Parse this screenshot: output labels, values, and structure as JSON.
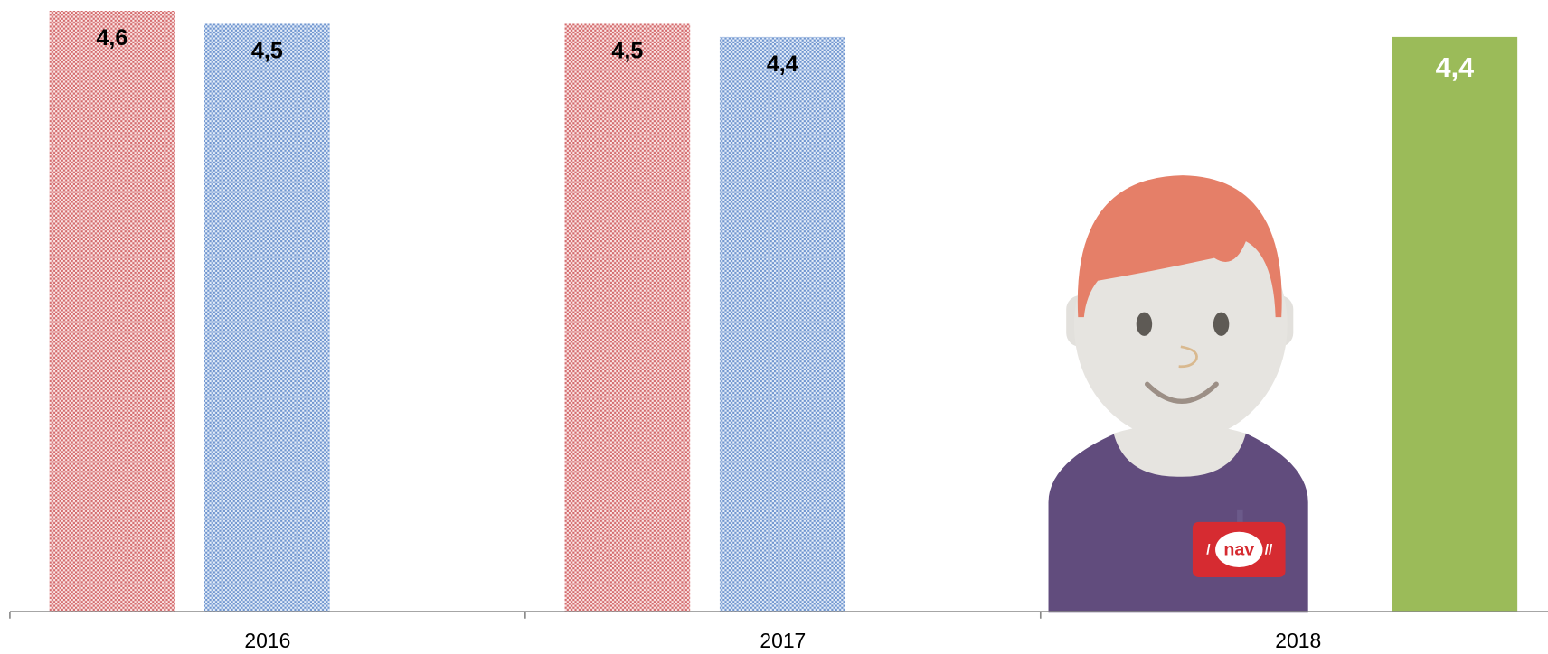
{
  "chart_data": {
    "type": "bar",
    "categories": [
      "2016",
      "2017",
      "2018"
    ],
    "series": [
      {
        "color": "#d9898a",
        "values": [
          4.6,
          4.5,
          null
        ],
        "value_labels": [
          "4,6",
          "4,5",
          null
        ]
      },
      {
        "color": "#8aaad6",
        "values": [
          4.5,
          4.4,
          null
        ],
        "value_labels": [
          "4,5",
          "4,4",
          null
        ]
      },
      {
        "color": "#9bbb59",
        "values": [
          null,
          null,
          4.4
        ],
        "value_labels": [
          null,
          null,
          "4,4"
        ]
      }
    ]
  },
  "illustration": {
    "badge_text": "nav"
  }
}
